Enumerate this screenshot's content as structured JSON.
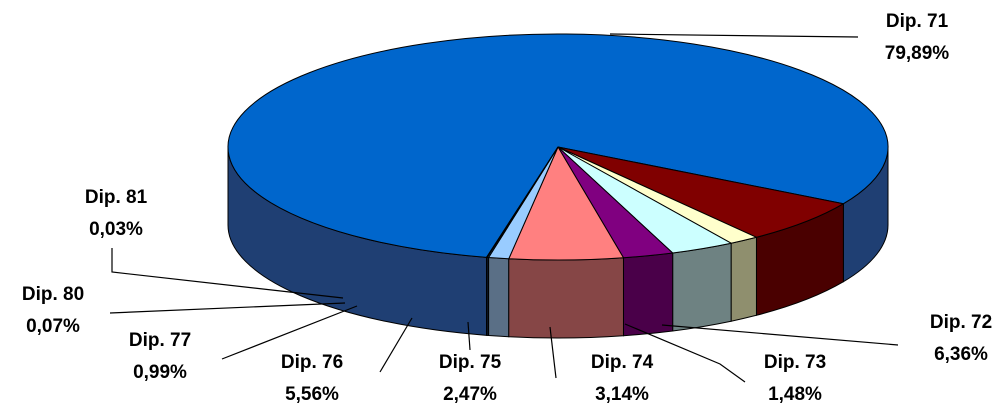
{
  "chart_data": {
    "type": "pie",
    "style": "3d",
    "slices": [
      {
        "name": "Dip. 71",
        "label": "79,89%",
        "value": 79.89,
        "color": "#0066CC",
        "side": "#1F3F73"
      },
      {
        "name": "Dip. 72",
        "label": "6,36%",
        "value": 6.36,
        "color": "#800000",
        "side": "#4A0000"
      },
      {
        "name": "Dip. 73",
        "label": "1,48%",
        "value": 1.48,
        "color": "#FFFFCC",
        "side": "#8F8F6E"
      },
      {
        "name": "Dip. 74",
        "label": "3,14%",
        "value": 3.14,
        "color": "#CCFFFF",
        "side": "#6E8282"
      },
      {
        "name": "Dip. 75",
        "label": "2,47%",
        "value": 2.47,
        "color": "#800080",
        "side": "#4A0049"
      },
      {
        "name": "Dip. 76",
        "label": "5,56%",
        "value": 5.56,
        "color": "#FF8080",
        "side": "#864646"
      },
      {
        "name": "Dip. 77",
        "label": "0,99%",
        "value": 0.99,
        "color": "#99CCFF",
        "side": "#5A6F86"
      },
      {
        "name": "Dip. 80",
        "label": "0,07%",
        "value": 0.07,
        "color": "#0066CC",
        "side": "#1F3F73"
      },
      {
        "name": "Dip. 81",
        "label": "0,03%",
        "value": 0.03,
        "color": "#0066CC",
        "side": "#1F3F73"
      }
    ]
  }
}
